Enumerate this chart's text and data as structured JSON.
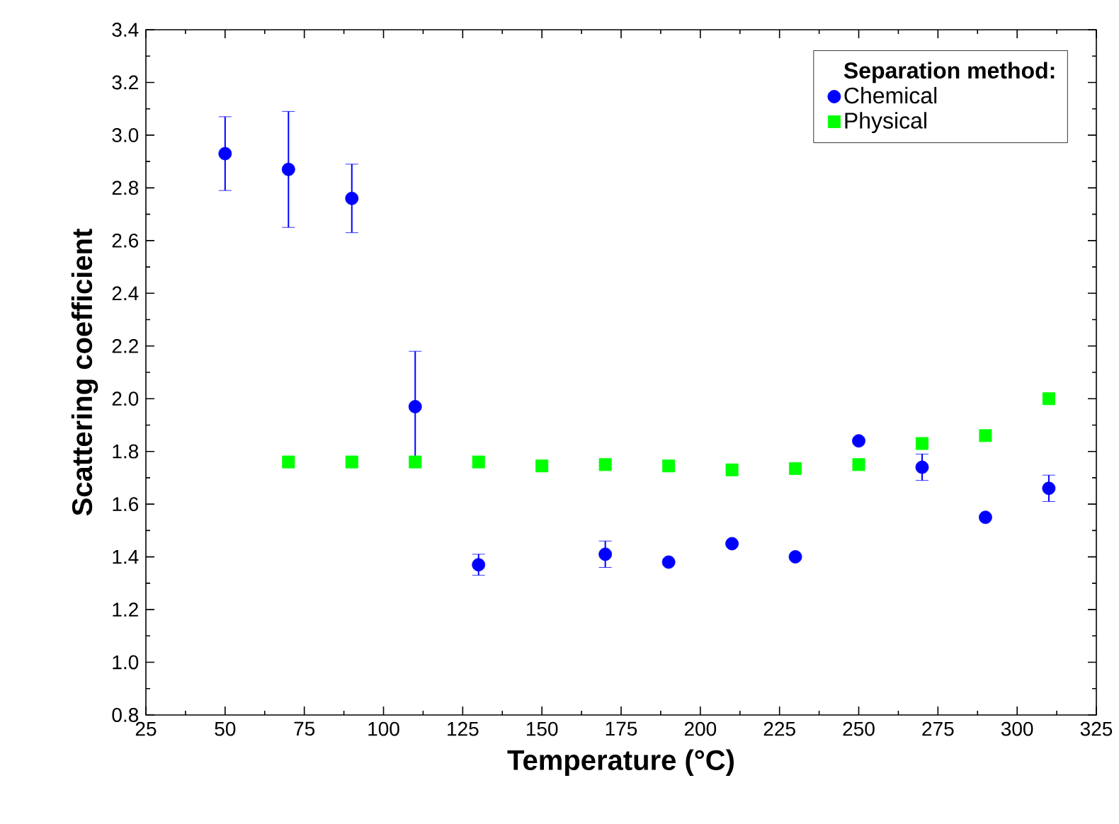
{
  "chart_data": {
    "type": "scatter",
    "xlabel": "Temperature (°C)",
    "ylabel": "Scattering coefficient",
    "legend_title": "Separation method:",
    "legend": "top right",
    "grid": false,
    "xlim": [
      25,
      325
    ],
    "xticks": [
      25,
      50,
      75,
      100,
      125,
      150,
      175,
      200,
      225,
      250,
      275,
      300,
      325
    ],
    "ylim": [
      0.8,
      3.4
    ],
    "yticks": [
      0.8,
      {
        "value": 1,
        "label": "1.0"
      },
      1.2,
      1.4,
      1.6,
      1.8,
      {
        "value": 2,
        "label": "2.0"
      },
      2.2,
      2.4,
      2.6,
      2.8,
      {
        "value": 3,
        "label": "3.0"
      },
      3.2,
      3.4
    ],
    "series": [
      {
        "name": "Chemical",
        "color": "#0000ff",
        "marker": "circle",
        "x": [
          50,
          70,
          90,
          110,
          130,
          170,
          190,
          210,
          230,
          250,
          270,
          290,
          310
        ],
        "values": [
          2.93,
          2.87,
          2.76,
          1.97,
          1.37,
          1.41,
          1.38,
          1.45,
          1.4,
          1.84,
          1.74,
          1.55,
          1.66
        ],
        "errors": [
          0.14,
          0.22,
          0.13,
          0.21,
          0.04,
          0.05,
          null,
          null,
          null,
          null,
          0.05,
          null,
          0.05
        ]
      },
      {
        "name": "Physical",
        "color": "#00ff00",
        "marker": "square",
        "x": [
          70,
          90,
          110,
          130,
          150,
          170,
          190,
          210,
          230,
          250,
          270,
          290,
          310
        ],
        "values": [
          1.76,
          1.76,
          1.76,
          1.76,
          1.745,
          1.75,
          1.745,
          1.73,
          1.735,
          1.75,
          1.83,
          1.86,
          2.0
        ]
      }
    ]
  }
}
